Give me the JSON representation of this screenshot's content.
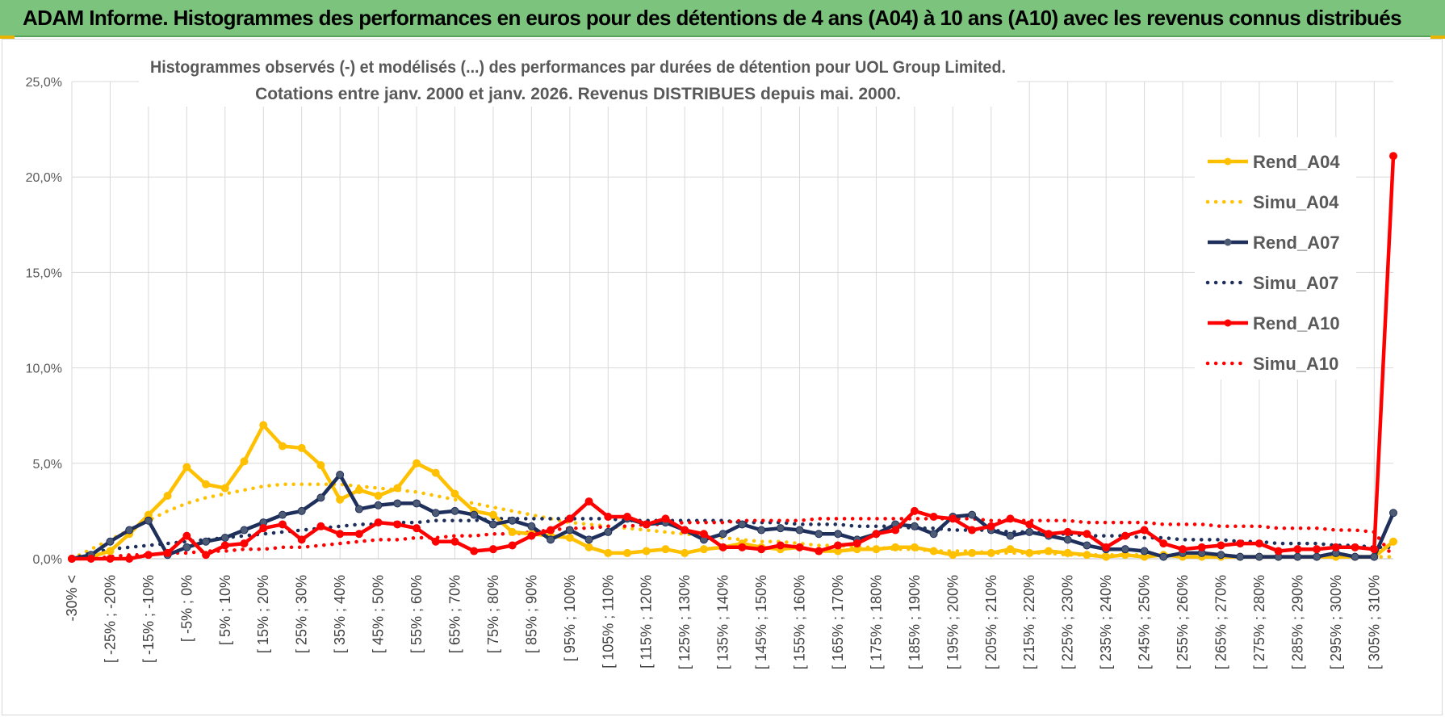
{
  "header": {
    "title": "ADAM Informe. Histogrammes des performances en euros pour des détentions de 4 ans (A04) à 10 ans (A10) avec les revenus connus distribués"
  },
  "chart_data": {
    "type": "line",
    "title": "Histogrammes observés (-) et modélisés (...) des performances par durées de détention pour UOL Group Limited.",
    "subtitle": "Cotations entre janv. 2000 et janv. 2026. Revenus DISTRIBUES depuis mai. 2000.",
    "xlabel": "",
    "ylabel": "",
    "ylim": [
      0,
      25
    ],
    "yticks": [
      "0,0%",
      "5,0%",
      "10,0%",
      "15,0%",
      "20,0%",
      "25,0%"
    ],
    "grid": true,
    "legend_position": "right",
    "tick_labels": [
      "-30% <",
      "[ -25% ; -20%",
      "[ -15% ; -10%",
      "[ -5% ; 0%",
      "[ 5% ; 10%",
      "[ 15% ; 20%",
      "[ 25% ; 30%",
      "[ 35% ; 40%",
      "[ 45% ; 50%",
      "[ 55% ; 60%",
      "[ 65% ; 70%",
      "[ 75% ; 80%",
      "[ 85% ; 90%",
      "[ 95% ; 100%",
      "[ 105% ; 110%",
      "[ 115% ; 120%",
      "[ 125% ; 130%",
      "[ 135% ; 140%",
      "[ 145% ; 150%",
      "[ 155% ; 160%",
      "[ 165% ; 170%",
      "[ 175% ; 180%",
      "[ 185% ; 190%",
      "[ 195% ; 200%",
      "[ 205% ; 210%",
      "[ 215% ; 220%",
      "[ 225% ; 230%",
      "[ 235% ; 240%",
      "[ 245% ; 250%",
      "[ 255% ; 260%",
      "[ 265% ; 270%",
      "[ 275% ; 280%",
      "[ 285% ; 290%",
      "[ 295% ; 300%",
      "[ 305% ; 310%"
    ],
    "series": [
      {
        "name": "Rend_A04",
        "style": "solid",
        "markers": true,
        "color": "#ffc000",
        "values": [
          0.0,
          0.1,
          0.4,
          1.3,
          2.3,
          3.3,
          4.8,
          3.9,
          3.7,
          5.1,
          7.0,
          5.9,
          5.8,
          4.9,
          3.1,
          3.6,
          3.3,
          3.7,
          5.0,
          4.5,
          3.4,
          2.5,
          2.3,
          1.4,
          1.3,
          1.2,
          1.1,
          0.6,
          0.3,
          0.3,
          0.4,
          0.5,
          0.3,
          0.5,
          0.6,
          0.8,
          0.6,
          0.5,
          0.6,
          0.4,
          0.4,
          0.5,
          0.5,
          0.6,
          0.6,
          0.4,
          0.2,
          0.3,
          0.3,
          0.5,
          0.3,
          0.4,
          0.3,
          0.2,
          0.1,
          0.2,
          0.1,
          0.2,
          0.1,
          0.1,
          0.1,
          0.1,
          0.1,
          0.1,
          0.1,
          0.1,
          0.1,
          0.1,
          0.1,
          0.9
        ]
      },
      {
        "name": "Simu_A04",
        "style": "dotted",
        "markers": false,
        "color": "#ffc000",
        "values": [
          0.0,
          0.5,
          1.0,
          1.5,
          2.0,
          2.5,
          2.9,
          3.2,
          3.4,
          3.6,
          3.8,
          3.9,
          3.9,
          3.9,
          3.9,
          3.8,
          3.7,
          3.6,
          3.5,
          3.3,
          3.1,
          2.9,
          2.7,
          2.5,
          2.3,
          2.1,
          1.9,
          1.8,
          1.7,
          1.6,
          1.5,
          1.4,
          1.3,
          1.2,
          1.1,
          1.0,
          0.9,
          0.9,
          0.8,
          0.7,
          0.7,
          0.6,
          0.6,
          0.5,
          0.5,
          0.4,
          0.4,
          0.4,
          0.3,
          0.3,
          0.3,
          0.3,
          0.2,
          0.2,
          0.2,
          0.2,
          0.2,
          0.2,
          0.1,
          0.1,
          0.1,
          0.1,
          0.1,
          0.1,
          0.1,
          0.1,
          0.1,
          0.1,
          0.1,
          0.1
        ]
      },
      {
        "name": "Rend_A07",
        "style": "solid",
        "markers": true,
        "color": "#1f2f5c",
        "values": [
          0.0,
          0.2,
          0.9,
          1.5,
          2.0,
          0.2,
          0.6,
          0.9,
          1.1,
          1.5,
          1.9,
          2.3,
          2.5,
          3.2,
          4.4,
          2.6,
          2.8,
          2.9,
          2.9,
          2.4,
          2.5,
          2.3,
          1.8,
          2.0,
          1.7,
          1.0,
          1.5,
          1.0,
          1.4,
          2.1,
          1.8,
          1.9,
          1.5,
          1.0,
          1.3,
          1.8,
          1.5,
          1.6,
          1.5,
          1.3,
          1.3,
          1.0,
          1.3,
          1.8,
          1.7,
          1.3,
          2.2,
          2.3,
          1.5,
          1.2,
          1.4,
          1.2,
          1.0,
          0.7,
          0.5,
          0.5,
          0.4,
          0.1,
          0.3,
          0.3,
          0.2,
          0.1,
          0.1,
          0.1,
          0.1,
          0.1,
          0.3,
          0.1,
          0.1,
          2.4
        ]
      },
      {
        "name": "Simu_A07",
        "style": "dotted",
        "markers": false,
        "color": "#1f2f5c",
        "values": [
          0.0,
          0.3,
          0.5,
          0.6,
          0.7,
          0.8,
          0.9,
          1.0,
          1.1,
          1.2,
          1.3,
          1.4,
          1.5,
          1.6,
          1.7,
          1.8,
          1.8,
          1.9,
          1.9,
          2.0,
          2.0,
          2.0,
          2.1,
          2.1,
          2.1,
          2.1,
          2.1,
          2.1,
          2.1,
          2.0,
          2.0,
          2.0,
          2.0,
          2.0,
          2.0,
          1.9,
          1.9,
          1.9,
          1.8,
          1.8,
          1.8,
          1.7,
          1.7,
          1.7,
          1.6,
          1.6,
          1.5,
          1.5,
          1.5,
          1.4,
          1.4,
          1.3,
          1.3,
          1.2,
          1.2,
          1.2,
          1.1,
          1.1,
          1.0,
          1.0,
          1.0,
          0.9,
          0.9,
          0.8,
          0.8,
          0.8,
          0.7,
          0.7,
          0.6,
          0.6
        ]
      },
      {
        "name": "Rend_A10",
        "style": "solid",
        "markers": true,
        "color": "#ff0000",
        "values": [
          0.0,
          0.0,
          0.0,
          0.0,
          0.2,
          0.3,
          1.2,
          0.2,
          0.7,
          0.8,
          1.6,
          1.8,
          1.0,
          1.7,
          1.3,
          1.3,
          1.9,
          1.8,
          1.6,
          0.9,
          0.9,
          0.4,
          0.5,
          0.7,
          1.2,
          1.5,
          2.1,
          3.0,
          2.2,
          2.2,
          1.8,
          2.1,
          1.5,
          1.3,
          0.6,
          0.6,
          0.5,
          0.7,
          0.6,
          0.4,
          0.7,
          0.8,
          1.3,
          1.5,
          2.5,
          2.2,
          2.1,
          1.5,
          1.7,
          2.1,
          1.8,
          1.3,
          1.4,
          1.3,
          0.6,
          1.2,
          1.5,
          0.8,
          0.5,
          0.6,
          0.7,
          0.8,
          0.8,
          0.4,
          0.5,
          0.5,
          0.6,
          0.6,
          0.5,
          21.1
        ]
      },
      {
        "name": "Simu_A10",
        "style": "dotted",
        "markers": false,
        "color": "#ff0000",
        "values": [
          0.0,
          0.0,
          0.1,
          0.2,
          0.2,
          0.3,
          0.3,
          0.4,
          0.4,
          0.5,
          0.5,
          0.6,
          0.6,
          0.7,
          0.8,
          0.9,
          1.0,
          1.0,
          1.1,
          1.1,
          1.2,
          1.2,
          1.3,
          1.3,
          1.4,
          1.5,
          1.6,
          1.6,
          1.7,
          1.7,
          1.8,
          1.8,
          1.9,
          1.9,
          1.9,
          2.0,
          2.0,
          2.0,
          2.0,
          2.1,
          2.1,
          2.1,
          2.1,
          2.1,
          2.1,
          2.1,
          2.1,
          2.1,
          2.0,
          2.0,
          2.0,
          2.0,
          2.0,
          1.9,
          1.9,
          1.9,
          1.9,
          1.8,
          1.8,
          1.8,
          1.7,
          1.7,
          1.7,
          1.6,
          1.6,
          1.6,
          1.5,
          1.5,
          1.4,
          0.1
        ]
      }
    ]
  }
}
